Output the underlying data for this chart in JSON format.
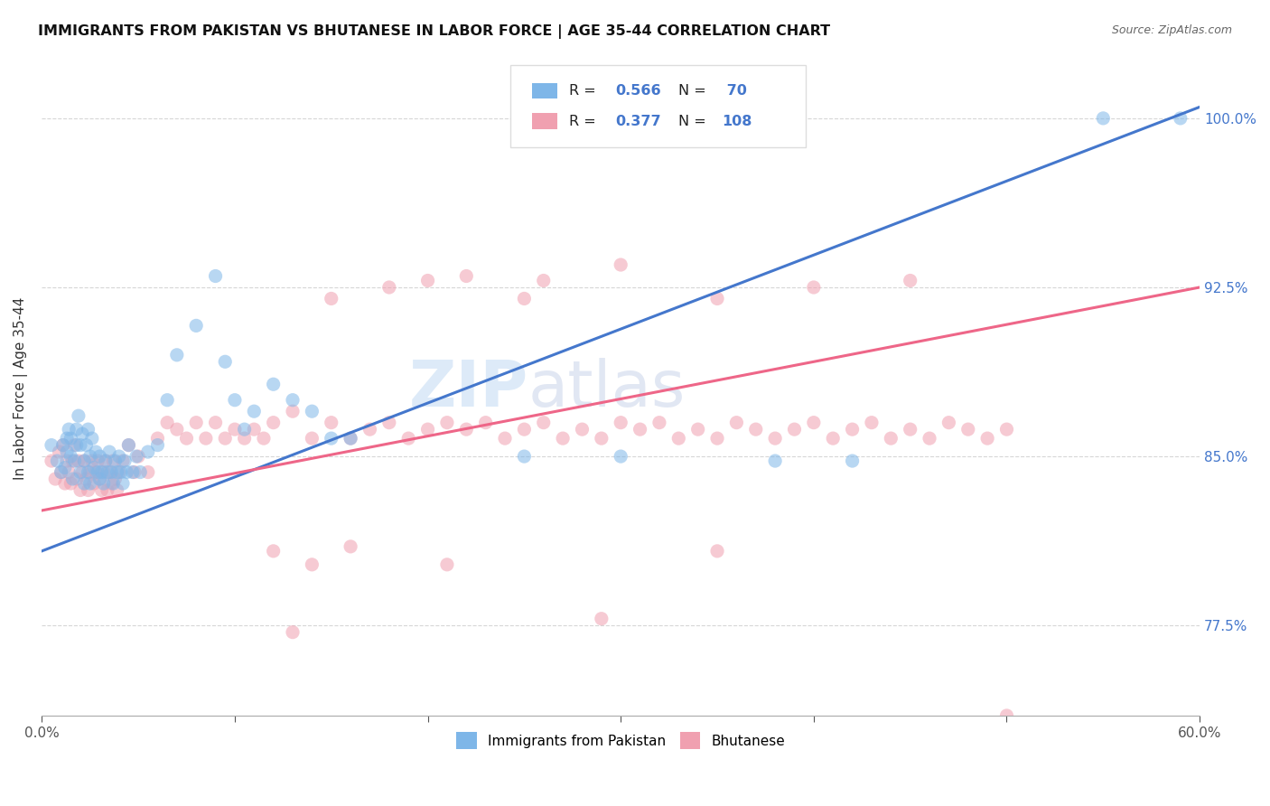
{
  "title": "IMMIGRANTS FROM PAKISTAN VS BHUTANESE IN LABOR FORCE | AGE 35-44 CORRELATION CHART",
  "source": "Source: ZipAtlas.com",
  "ylabel": "In Labor Force | Age 35-44",
  "xlim": [
    0.0,
    0.6
  ],
  "ylim": [
    0.735,
    1.025
  ],
  "xticks": [
    0.0,
    0.1,
    0.2,
    0.3,
    0.4,
    0.5,
    0.6
  ],
  "xticklabels": [
    "0.0%",
    "",
    "",
    "",
    "",
    "",
    "60.0%"
  ],
  "ytick_positions": [
    0.775,
    0.85,
    0.925,
    1.0
  ],
  "ytick_labels": [
    "77.5%",
    "85.0%",
    "92.5%",
    "100.0%"
  ],
  "color_pakistan": "#7EB6E8",
  "color_bhutanese": "#F0A0B0",
  "color_line_pakistan": "#4477CC",
  "color_line_bhutanese": "#EE6688",
  "marker_size": 120,
  "marker_alpha": 0.55,
  "pak_trend_x0": 0.0,
  "pak_trend_y0": 0.808,
  "pak_trend_x1": 0.6,
  "pak_trend_y1": 1.005,
  "bhu_trend_x0": 0.0,
  "bhu_trend_y0": 0.826,
  "bhu_trend_x1": 0.6,
  "bhu_trend_y1": 0.925,
  "pakistan_x": [
    0.005,
    0.008,
    0.01,
    0.011,
    0.012,
    0.013,
    0.013,
    0.014,
    0.015,
    0.015,
    0.016,
    0.017,
    0.018,
    0.018,
    0.019,
    0.02,
    0.02,
    0.021,
    0.022,
    0.022,
    0.023,
    0.024,
    0.024,
    0.025,
    0.025,
    0.026,
    0.027,
    0.028,
    0.029,
    0.03,
    0.03,
    0.031,
    0.032,
    0.033,
    0.034,
    0.035,
    0.036,
    0.037,
    0.038,
    0.039,
    0.04,
    0.041,
    0.042,
    0.043,
    0.044,
    0.045,
    0.047,
    0.049,
    0.051,
    0.055,
    0.06,
    0.065,
    0.07,
    0.08,
    0.09,
    0.095,
    0.1,
    0.105,
    0.11,
    0.12,
    0.13,
    0.14,
    0.15,
    0.16,
    0.25,
    0.3,
    0.38,
    0.42,
    0.55,
    0.59
  ],
  "pakistan_y": [
    0.855,
    0.848,
    0.843,
    0.855,
    0.845,
    0.852,
    0.858,
    0.862,
    0.85,
    0.858,
    0.84,
    0.848,
    0.855,
    0.862,
    0.868,
    0.843,
    0.855,
    0.86,
    0.838,
    0.848,
    0.855,
    0.862,
    0.843,
    0.838,
    0.85,
    0.858,
    0.845,
    0.852,
    0.843,
    0.84,
    0.85,
    0.843,
    0.838,
    0.848,
    0.843,
    0.852,
    0.843,
    0.838,
    0.848,
    0.843,
    0.85,
    0.843,
    0.838,
    0.848,
    0.843,
    0.855,
    0.843,
    0.85,
    0.843,
    0.852,
    0.855,
    0.875,
    0.895,
    0.908,
    0.93,
    0.892,
    0.875,
    0.862,
    0.87,
    0.882,
    0.875,
    0.87,
    0.858,
    0.858,
    0.85,
    0.85,
    0.848,
    0.848,
    1.0,
    1.0
  ],
  "bhutanese_x": [
    0.005,
    0.007,
    0.009,
    0.01,
    0.011,
    0.012,
    0.013,
    0.014,
    0.015,
    0.016,
    0.017,
    0.018,
    0.019,
    0.02,
    0.021,
    0.022,
    0.023,
    0.024,
    0.025,
    0.026,
    0.027,
    0.028,
    0.029,
    0.03,
    0.031,
    0.032,
    0.033,
    0.034,
    0.035,
    0.036,
    0.037,
    0.038,
    0.039,
    0.04,
    0.042,
    0.045,
    0.048,
    0.05,
    0.055,
    0.06,
    0.065,
    0.07,
    0.075,
    0.08,
    0.085,
    0.09,
    0.095,
    0.1,
    0.105,
    0.11,
    0.115,
    0.12,
    0.13,
    0.14,
    0.15,
    0.16,
    0.17,
    0.18,
    0.19,
    0.2,
    0.21,
    0.22,
    0.23,
    0.24,
    0.25,
    0.26,
    0.27,
    0.28,
    0.29,
    0.3,
    0.31,
    0.32,
    0.33,
    0.34,
    0.35,
    0.36,
    0.37,
    0.38,
    0.39,
    0.4,
    0.41,
    0.42,
    0.43,
    0.44,
    0.45,
    0.46,
    0.47,
    0.48,
    0.49,
    0.5,
    0.15,
    0.2,
    0.25,
    0.3,
    0.22,
    0.18,
    0.26,
    0.35,
    0.4,
    0.45,
    0.12,
    0.14,
    0.16,
    0.35,
    0.5,
    0.13,
    0.21,
    0.29
  ],
  "bhutanese_y": [
    0.848,
    0.84,
    0.852,
    0.843,
    0.855,
    0.838,
    0.848,
    0.843,
    0.838,
    0.848,
    0.855,
    0.84,
    0.848,
    0.835,
    0.843,
    0.848,
    0.84,
    0.835,
    0.843,
    0.848,
    0.838,
    0.843,
    0.848,
    0.84,
    0.835,
    0.843,
    0.848,
    0.835,
    0.843,
    0.838,
    0.848,
    0.84,
    0.835,
    0.843,
    0.848,
    0.855,
    0.843,
    0.85,
    0.843,
    0.858,
    0.865,
    0.862,
    0.858,
    0.865,
    0.858,
    0.865,
    0.858,
    0.862,
    0.858,
    0.862,
    0.858,
    0.865,
    0.87,
    0.858,
    0.865,
    0.858,
    0.862,
    0.865,
    0.858,
    0.862,
    0.865,
    0.862,
    0.865,
    0.858,
    0.862,
    0.865,
    0.858,
    0.862,
    0.858,
    0.865,
    0.862,
    0.865,
    0.858,
    0.862,
    0.858,
    0.865,
    0.862,
    0.858,
    0.862,
    0.865,
    0.858,
    0.862,
    0.865,
    0.858,
    0.862,
    0.858,
    0.865,
    0.862,
    0.858,
    0.862,
    0.92,
    0.928,
    0.92,
    0.935,
    0.93,
    0.925,
    0.928,
    0.92,
    0.925,
    0.928,
    0.808,
    0.802,
    0.81,
    0.808,
    0.735,
    0.772,
    0.802,
    0.778
  ]
}
